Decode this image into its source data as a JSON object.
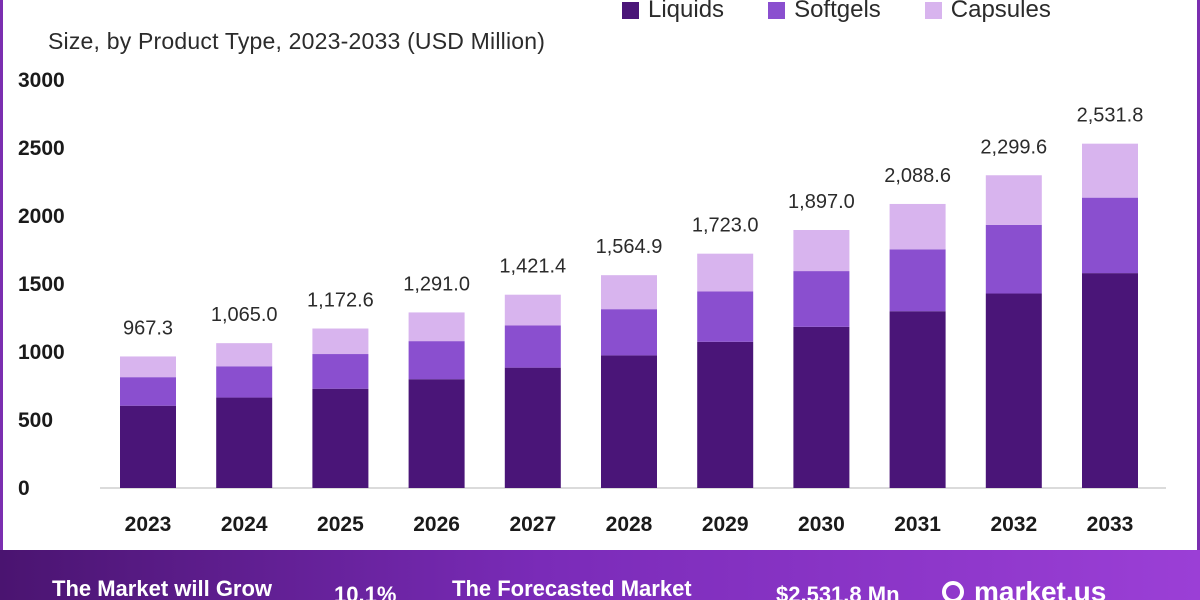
{
  "subtitle": "Size, by Product Type, 2023-2033 (USD Million)",
  "legend": [
    {
      "label": "Liquids",
      "color": "#4a1578"
    },
    {
      "label": "Softgels",
      "color": "#8a4fcf"
    },
    {
      "label": "Capsules",
      "color": "#d8b4ee"
    }
  ],
  "footer": {
    "grow_text": "The Market will Grow",
    "cagr_text": "10.1%",
    "forecast_text": "The Forecasted Market",
    "size_text": "$2,531.8 Mn",
    "logo_text": "market.us"
  },
  "chart_data": {
    "type": "bar",
    "stacked": true,
    "categories": [
      "2023",
      "2024",
      "2025",
      "2026",
      "2027",
      "2028",
      "2029",
      "2030",
      "2031",
      "2032",
      "2033"
    ],
    "series": [
      {
        "name": "Liquids",
        "values": [
          605,
          665,
          730,
          800,
          885,
          975,
          1075,
          1185,
          1300,
          1430,
          1580
        ]
      },
      {
        "name": "Softgels",
        "values": [
          210,
          230,
          255,
          280,
          310,
          340,
          370,
          410,
          455,
          505,
          555
        ]
      },
      {
        "name": "Capsules",
        "values": [
          152.3,
          170,
          187.6,
          211,
          226.4,
          249.9,
          278,
          302,
          333.6,
          364.6,
          396.8
        ]
      }
    ],
    "totals": [
      "967.3",
      "1,065.0",
      "1,172.6",
      "1,291.0",
      "1,421.4",
      "1,564.9",
      "1,723.0",
      "1,897.0",
      "2,088.6",
      "2,299.6",
      "2,531.8"
    ],
    "yticks": [
      "0",
      "500",
      "1000",
      "1500",
      "2000",
      "2500",
      "3000"
    ],
    "ylim": [
      0,
      3000
    ],
    "grid": false
  }
}
